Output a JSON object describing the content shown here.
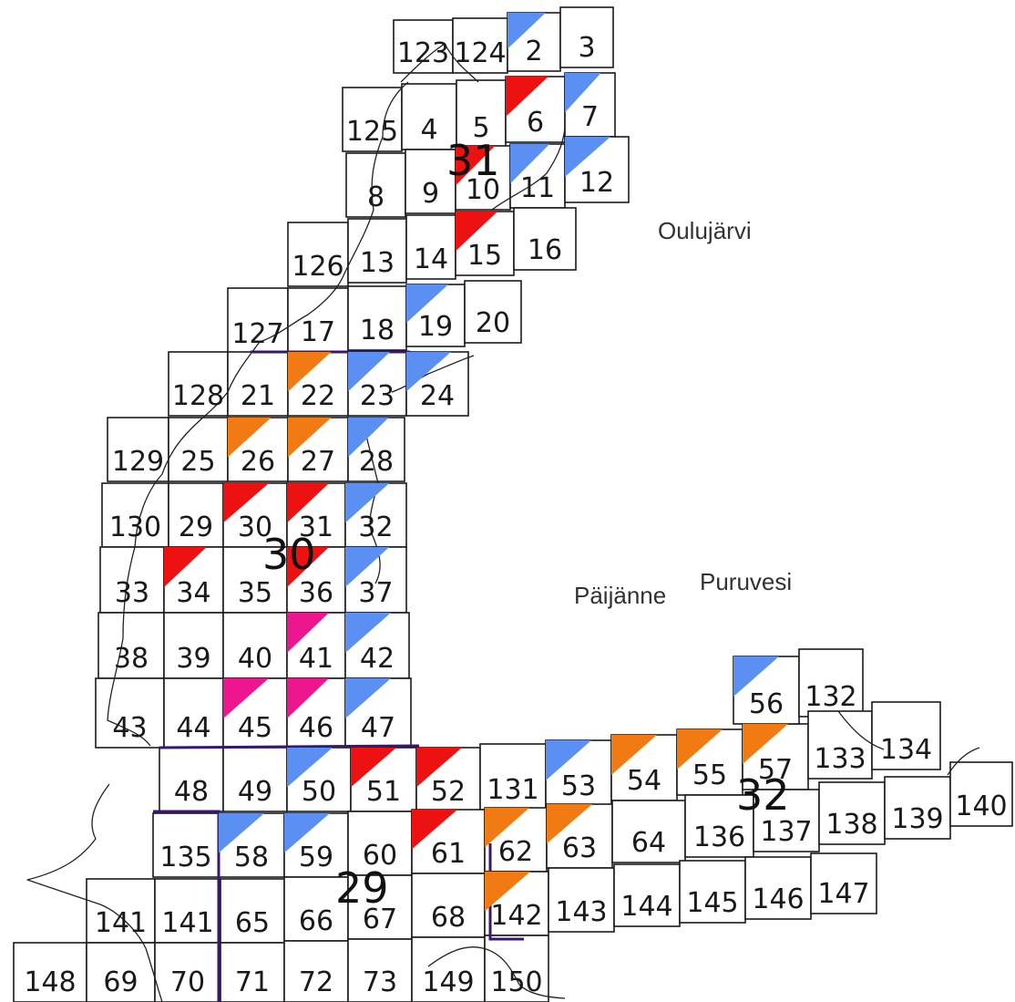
{
  "legend_colors": {
    "blue": "#5b8ff2",
    "red": "#ee1111",
    "orange": "#f27a12",
    "magenta": "#ee168f"
  },
  "places": {
    "oulujarvi": "Oulujärvi",
    "paijanne": "Päijänne",
    "puruvesi": "Puruvesi"
  },
  "region_labels": {
    "r31": "31",
    "r30": "30",
    "r29": "29",
    "r32": "32"
  },
  "cells": [
    {
      "id": "123",
      "label": "123",
      "flag": null
    },
    {
      "id": "124",
      "label": "124",
      "flag": null
    },
    {
      "id": "2",
      "label": "2",
      "flag": "blue"
    },
    {
      "id": "3",
      "label": "3",
      "flag": null
    },
    {
      "id": "125",
      "label": "125",
      "flag": null
    },
    {
      "id": "4",
      "label": "4",
      "flag": null
    },
    {
      "id": "5",
      "label": "5",
      "flag": null
    },
    {
      "id": "6",
      "label": "6",
      "flag": "red"
    },
    {
      "id": "7",
      "label": "7",
      "flag": "blue"
    },
    {
      "id": "8",
      "label": "8",
      "flag": null
    },
    {
      "id": "9",
      "label": "9",
      "flag": null
    },
    {
      "id": "10",
      "label": "10",
      "flag": "red"
    },
    {
      "id": "11",
      "label": "11",
      "flag": "blue"
    },
    {
      "id": "12",
      "label": "12",
      "flag": "blue"
    },
    {
      "id": "126",
      "label": "126",
      "flag": null
    },
    {
      "id": "13",
      "label": "13",
      "flag": null
    },
    {
      "id": "14",
      "label": "14",
      "flag": null
    },
    {
      "id": "15",
      "label": "15",
      "flag": "red"
    },
    {
      "id": "16",
      "label": "16",
      "flag": null
    },
    {
      "id": "127",
      "label": "127",
      "flag": null
    },
    {
      "id": "17",
      "label": "17",
      "flag": null
    },
    {
      "id": "18",
      "label": "18",
      "flag": null
    },
    {
      "id": "19",
      "label": "19",
      "flag": "blue"
    },
    {
      "id": "20",
      "label": "20",
      "flag": null
    },
    {
      "id": "128",
      "label": "128",
      "flag": null
    },
    {
      "id": "21",
      "label": "21",
      "flag": null
    },
    {
      "id": "22",
      "label": "22",
      "flag": "orange"
    },
    {
      "id": "23",
      "label": "23",
      "flag": "blue"
    },
    {
      "id": "24",
      "label": "24",
      "flag": "blue"
    },
    {
      "id": "129",
      "label": "129",
      "flag": null
    },
    {
      "id": "25",
      "label": "25",
      "flag": null
    },
    {
      "id": "26",
      "label": "26",
      "flag": "orange"
    },
    {
      "id": "27",
      "label": "27",
      "flag": "orange"
    },
    {
      "id": "28",
      "label": "28",
      "flag": "blue"
    },
    {
      "id": "130",
      "label": "130",
      "flag": null
    },
    {
      "id": "29",
      "label": "29",
      "flag": null
    },
    {
      "id": "30",
      "label": "30",
      "flag": "red"
    },
    {
      "id": "31",
      "label": "31",
      "flag": "red"
    },
    {
      "id": "32",
      "label": "32",
      "flag": "blue"
    },
    {
      "id": "33",
      "label": "33",
      "flag": null
    },
    {
      "id": "34",
      "label": "34",
      "flag": "red"
    },
    {
      "id": "35",
      "label": "35",
      "flag": null
    },
    {
      "id": "36",
      "label": "36",
      "flag": "red"
    },
    {
      "id": "37",
      "label": "37",
      "flag": "blue"
    },
    {
      "id": "38",
      "label": "38",
      "flag": null
    },
    {
      "id": "39",
      "label": "39",
      "flag": null
    },
    {
      "id": "40",
      "label": "40",
      "flag": null
    },
    {
      "id": "41",
      "label": "41",
      "flag": "magenta"
    },
    {
      "id": "42",
      "label": "42",
      "flag": "blue"
    },
    {
      "id": "43",
      "label": "43",
      "flag": null
    },
    {
      "id": "44",
      "label": "44",
      "flag": null
    },
    {
      "id": "45",
      "label": "45",
      "flag": "magenta"
    },
    {
      "id": "46",
      "label": "46",
      "flag": "magenta"
    },
    {
      "id": "47",
      "label": "47",
      "flag": "blue"
    },
    {
      "id": "48",
      "label": "48",
      "flag": null
    },
    {
      "id": "49",
      "label": "49",
      "flag": null
    },
    {
      "id": "50",
      "label": "50",
      "flag": "blue"
    },
    {
      "id": "51",
      "label": "51",
      "flag": "red"
    },
    {
      "id": "52",
      "label": "52",
      "flag": "red"
    },
    {
      "id": "131",
      "label": "131",
      "flag": null
    },
    {
      "id": "53",
      "label": "53",
      "flag": "blue"
    },
    {
      "id": "54",
      "label": "54",
      "flag": "orange"
    },
    {
      "id": "55",
      "label": "55",
      "flag": "orange"
    },
    {
      "id": "57",
      "label": "57",
      "flag": "orange"
    },
    {
      "id": "56",
      "label": "56",
      "flag": "blue"
    },
    {
      "id": "132",
      "label": "132",
      "flag": null
    },
    {
      "id": "133",
      "label": "133",
      "flag": null
    },
    {
      "id": "134",
      "label": "134",
      "flag": null
    },
    {
      "id": "135",
      "label": "135",
      "flag": null
    },
    {
      "id": "58",
      "label": "58",
      "flag": "blue"
    },
    {
      "id": "59",
      "label": "59",
      "flag": "blue"
    },
    {
      "id": "60",
      "label": "60",
      "flag": null
    },
    {
      "id": "61",
      "label": "61",
      "flag": "red"
    },
    {
      "id": "62",
      "label": "62",
      "flag": "orange"
    },
    {
      "id": "63",
      "label": "63",
      "flag": "orange"
    },
    {
      "id": "64",
      "label": "64",
      "flag": null
    },
    {
      "id": "136",
      "label": "136",
      "flag": null
    },
    {
      "id": "137",
      "label": "137",
      "flag": null
    },
    {
      "id": "138",
      "label": "138",
      "flag": null
    },
    {
      "id": "139",
      "label": "139",
      "flag": null
    },
    {
      "id": "140",
      "label": "140",
      "flag": null
    },
    {
      "id": "141a",
      "label": "141",
      "flag": null
    },
    {
      "id": "141b",
      "label": "141",
      "flag": null
    },
    {
      "id": "65",
      "label": "65",
      "flag": null
    },
    {
      "id": "66",
      "label": "66",
      "flag": null
    },
    {
      "id": "67",
      "label": "67",
      "flag": null
    },
    {
      "id": "68",
      "label": "68",
      "flag": null
    },
    {
      "id": "142",
      "label": "142",
      "flag": "orange"
    },
    {
      "id": "143",
      "label": "143",
      "flag": null
    },
    {
      "id": "144",
      "label": "144",
      "flag": null
    },
    {
      "id": "145",
      "label": "145",
      "flag": null
    },
    {
      "id": "146",
      "label": "146",
      "flag": null
    },
    {
      "id": "147",
      "label": "147",
      "flag": null
    },
    {
      "id": "148",
      "label": "148",
      "flag": null
    },
    {
      "id": "69",
      "label": "69",
      "flag": null
    },
    {
      "id": "70",
      "label": "70",
      "flag": null
    },
    {
      "id": "71",
      "label": "71",
      "flag": null
    },
    {
      "id": "72",
      "label": "72",
      "flag": null
    },
    {
      "id": "73",
      "label": "73",
      "flag": null
    },
    {
      "id": "149",
      "label": "149",
      "flag": null
    },
    {
      "id": "150",
      "label": "150",
      "flag": null
    }
  ]
}
